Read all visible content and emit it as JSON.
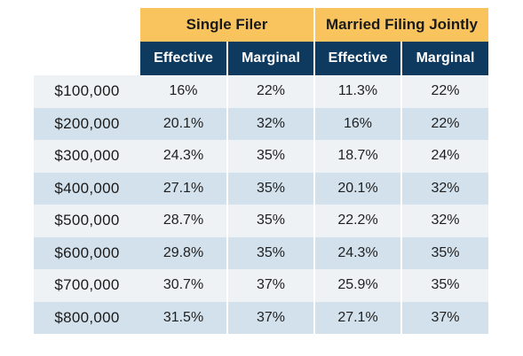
{
  "header": {
    "groups": [
      "Single Filer",
      "Married Filing Jointly"
    ],
    "subcolumns": [
      "Effective",
      "Marginal",
      "Effective",
      "Marginal"
    ]
  },
  "rows": [
    {
      "income": "$100,000",
      "single_effective": "16%",
      "single_marginal": "22%",
      "married_effective": "11.3%",
      "married_marginal": "22%"
    },
    {
      "income": "$200,000",
      "single_effective": "20.1%",
      "single_marginal": "32%",
      "married_effective": "16%",
      "married_marginal": "22%"
    },
    {
      "income": "$300,000",
      "single_effective": "24.3%",
      "single_marginal": "35%",
      "married_effective": "18.7%",
      "married_marginal": "24%"
    },
    {
      "income": "$400,000",
      "single_effective": "27.1%",
      "single_marginal": "35%",
      "married_effective": "20.1%",
      "married_marginal": "32%"
    },
    {
      "income": "$500,000",
      "single_effective": "28.7%",
      "single_marginal": "35%",
      "married_effective": "22.2%",
      "married_marginal": "32%"
    },
    {
      "income": "$600,000",
      "single_effective": "29.8%",
      "single_marginal": "35%",
      "married_effective": "24.3%",
      "married_marginal": "35%"
    },
    {
      "income": "$700,000",
      "single_effective": "30.7%",
      "single_marginal": "37%",
      "married_effective": "25.9%",
      "married_marginal": "35%"
    },
    {
      "income": "$800,000",
      "single_effective": "31.5%",
      "single_marginal": "37%",
      "married_effective": "27.1%",
      "married_marginal": "37%"
    }
  ],
  "colors": {
    "group_header_bg": "#f9c45e",
    "sub_header_bg": "#0f3a5f",
    "row_light": "#eef2f5",
    "row_dark": "#d2e1ec"
  }
}
